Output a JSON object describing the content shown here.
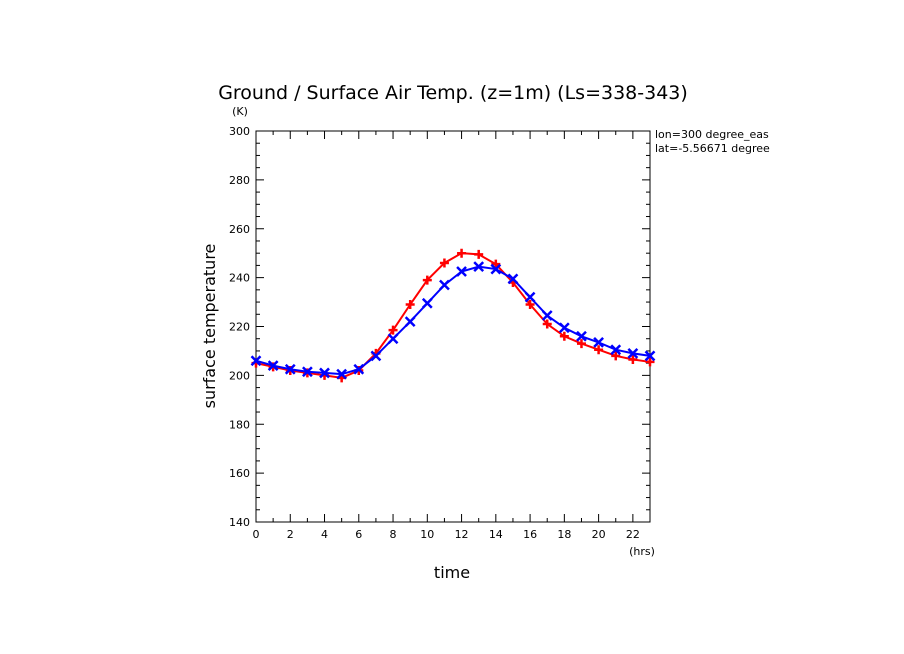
{
  "chart_data": {
    "type": "line",
    "title": "Ground / Surface Air Temp. (z=1m) (Ls=338-343)",
    "xlabel": "time",
    "ylabel": "surface temperature",
    "x_unit": "(hrs)",
    "y_unit": "(K)",
    "annotations": [
      "lon=300 degree_eas",
      "lat=-5.56671 degree"
    ],
    "xlim": [
      0,
      23
    ],
    "ylim": [
      140,
      300
    ],
    "x_ticks": [
      0,
      2,
      4,
      6,
      8,
      10,
      12,
      14,
      16,
      18,
      20,
      22
    ],
    "y_ticks": [
      140,
      160,
      180,
      200,
      220,
      240,
      260,
      280,
      300
    ],
    "x": [
      0,
      1,
      2,
      3,
      4,
      5,
      6,
      7,
      8,
      9,
      10,
      11,
      12,
      13,
      14,
      15,
      16,
      17,
      18,
      19,
      20,
      21,
      22,
      23
    ],
    "series": [
      {
        "color": "#ff0000",
        "marker": "plus",
        "values": [
          205,
          203.5,
          202,
          201,
          200,
          199,
          202,
          209,
          218.5,
          229,
          239,
          246,
          250,
          249.5,
          245.5,
          238,
          229,
          221,
          216,
          213,
          210.5,
          208,
          206.5,
          205.5
        ]
      },
      {
        "color": "#0000ff",
        "marker": "x",
        "values": [
          206,
          204,
          202.5,
          201.5,
          201,
          200.5,
          202.5,
          208,
          215,
          222,
          229.5,
          237,
          242.5,
          244.5,
          243.5,
          239.5,
          232,
          224.5,
          219.5,
          216,
          213.5,
          210.5,
          209,
          208
        ]
      }
    ]
  }
}
